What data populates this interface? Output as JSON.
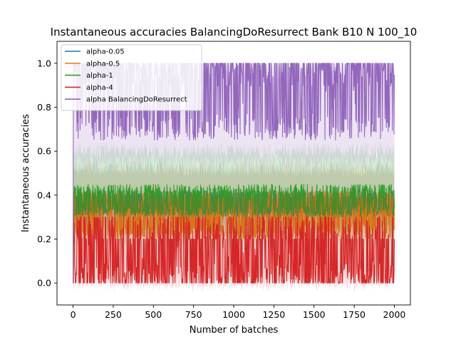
{
  "chart_data": {
    "type": "line",
    "title": "Instantaneous accuracies BalancingDoResurrect Bank B10 N 100_10",
    "xlabel": "Number of batches",
    "ylabel": "Instantaneous accuracies",
    "xlim": [
      -100,
      2100
    ],
    "ylim": [
      -0.1,
      1.1
    ],
    "xticks": [
      0,
      250,
      500,
      750,
      1000,
      1250,
      1500,
      1750,
      2000
    ],
    "yticks": [
      0.0,
      0.2,
      0.4,
      0.6,
      0.8,
      1.0
    ],
    "xtick_labels": [
      "0",
      "250",
      "500",
      "750",
      "1000",
      "1250",
      "1500",
      "1750",
      "2000"
    ],
    "ytick_labels": [
      "0.0",
      "0.2",
      "0.4",
      "0.6",
      "0.8",
      "1.0"
    ],
    "legend_position": "upper-left",
    "grid": false,
    "n_batches": 2000,
    "series": [
      {
        "name": "alpha-0.05",
        "color": "#1f77b4",
        "mean_level": 0.38,
        "low": 0.3,
        "high": 0.42,
        "band": [
          0.25,
          0.52
        ]
      },
      {
        "name": "alpha-0.5",
        "color": "#ff7f0e",
        "mean_level": 0.32,
        "low": 0.2,
        "high": 0.42,
        "band": [
          0.2,
          0.52
        ]
      },
      {
        "name": "alpha-1",
        "color": "#2ca02c",
        "mean_level": 0.36,
        "low": 0.3,
        "high": 0.45,
        "band": [
          0.18,
          0.6
        ]
      },
      {
        "name": "alpha-4",
        "color": "#d62728",
        "mean_level": 0.15,
        "low": 0.0,
        "high": 0.3,
        "band": [
          0.0,
          0.4
        ]
      },
      {
        "name": "alpha BalancingDoResurrect",
        "color": "#9467bd",
        "mean_level": 0.85,
        "low": 0.65,
        "high": 1.0,
        "band": [
          0.55,
          1.0
        ]
      }
    ]
  }
}
